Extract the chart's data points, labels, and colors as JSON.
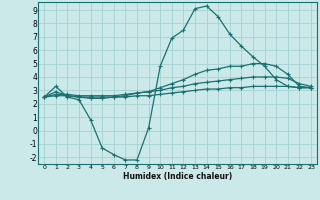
{
  "xlabel": "Humidex (Indice chaleur)",
  "background_color": "#cce9e9",
  "grid_color": "#aad4d4",
  "line_color": "#1a7070",
  "xlim": [
    -0.5,
    23.5
  ],
  "ylim": [
    -2.5,
    9.6
  ],
  "xticks": [
    0,
    1,
    2,
    3,
    4,
    5,
    6,
    7,
    8,
    9,
    10,
    11,
    12,
    13,
    14,
    15,
    16,
    17,
    18,
    19,
    20,
    21,
    22,
    23
  ],
  "yticks": [
    -2,
    -1,
    0,
    1,
    2,
    3,
    4,
    5,
    6,
    7,
    8,
    9
  ],
  "series": [
    [
      2.5,
      3.3,
      2.5,
      2.3,
      0.8,
      -1.3,
      -1.8,
      -2.2,
      -2.2,
      0.2,
      4.8,
      6.9,
      7.5,
      9.1,
      9.3,
      8.5,
      7.2,
      6.3,
      5.5,
      4.8,
      3.8,
      3.3,
      3.2,
      3.2
    ],
    [
      2.5,
      2.9,
      2.6,
      2.5,
      2.4,
      2.4,
      2.5,
      2.6,
      2.8,
      2.9,
      3.2,
      3.5,
      3.8,
      4.2,
      4.5,
      4.6,
      4.8,
      4.8,
      5.0,
      5.0,
      4.8,
      4.2,
      3.3,
      3.2
    ],
    [
      2.5,
      2.7,
      2.7,
      2.6,
      2.6,
      2.6,
      2.6,
      2.7,
      2.8,
      2.9,
      3.0,
      3.2,
      3.3,
      3.5,
      3.6,
      3.7,
      3.8,
      3.9,
      4.0,
      4.0,
      4.0,
      3.9,
      3.5,
      3.3
    ],
    [
      2.5,
      2.6,
      2.6,
      2.5,
      2.5,
      2.5,
      2.5,
      2.5,
      2.6,
      2.6,
      2.7,
      2.8,
      2.9,
      3.0,
      3.1,
      3.1,
      3.2,
      3.2,
      3.3,
      3.3,
      3.3,
      3.3,
      3.2,
      3.2
    ]
  ]
}
